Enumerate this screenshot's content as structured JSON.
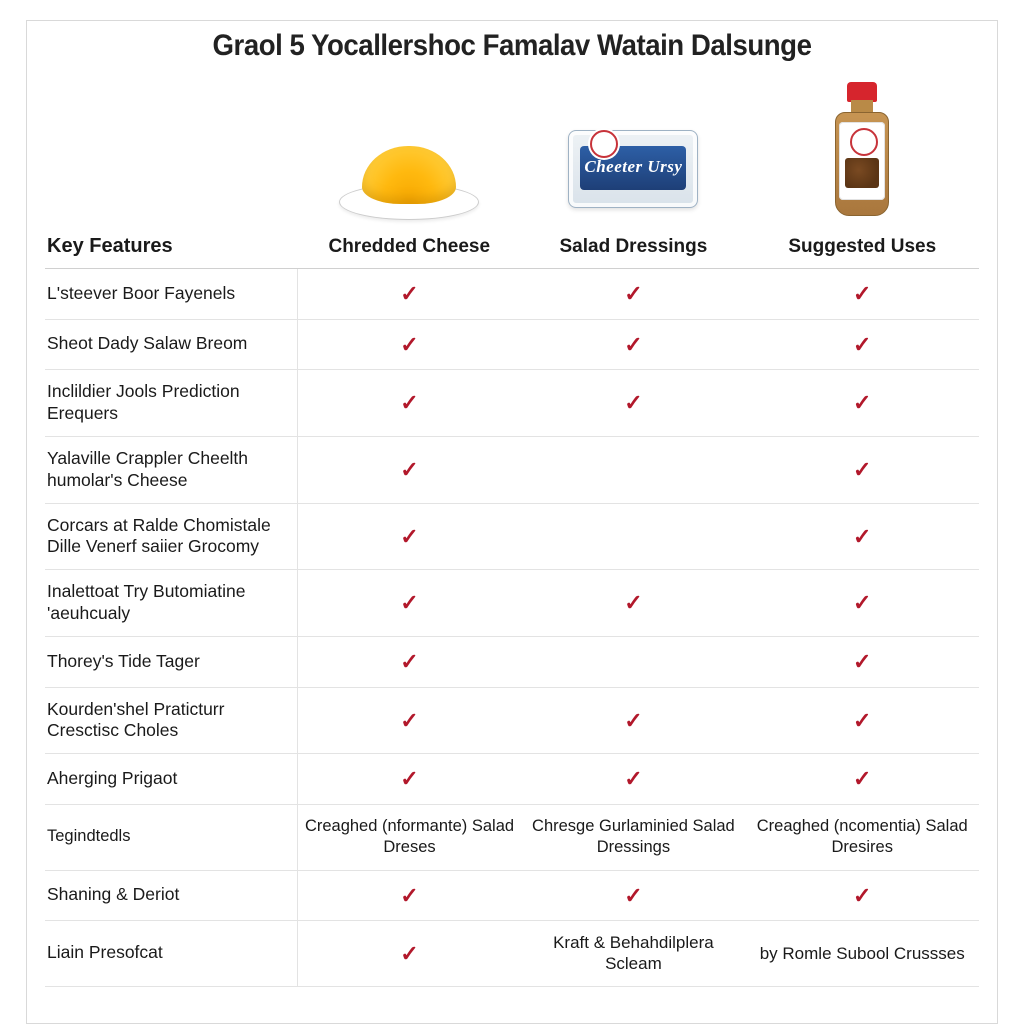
{
  "title": "Graol 5 Yocallershoc Famalav Watain Dalsunge",
  "columns": {
    "key": "Key Features",
    "c1": "Chredded Cheese",
    "c2": "Salad Dressings",
    "c3": "Suggested Uses"
  },
  "pkg_label": "Cheeter Ursy",
  "check_glyph": "✓",
  "colors": {
    "check": "#b2182b",
    "border": "#e3e3e3",
    "title": "#222222",
    "brand_red": "#d6252d",
    "brand_blue": "#1e3f77"
  },
  "rows": [
    {
      "label": "L'steever Boor Fayenels",
      "c1": "check",
      "c2": "check",
      "c3": "check"
    },
    {
      "label": "Sheot Dady Salaw Breom",
      "c1": "check",
      "c2": "check",
      "c3": "check"
    },
    {
      "label": "Inclildier Jools Prediction Erequers",
      "c1": "check",
      "c2": "check",
      "c3": "check"
    },
    {
      "label": "Yalaville Crappler Cheelth humolar's Cheese",
      "c1": "check",
      "c2": "",
      "c3": "check"
    },
    {
      "label": "Corcars at Ralde Chomistale Dille Venerf saiier Grocomy",
      "c1": "check",
      "c2": "",
      "c3": "check"
    },
    {
      "label": "Inalettoat Try Butomiatine 'aeuhcualy",
      "c1": "check",
      "c2": "check",
      "c3": "check"
    },
    {
      "label": "Thorey's Tide Tager",
      "c1": "check",
      "c2": "",
      "c3": "check"
    },
    {
      "label": "Kourden'shel Praticturr Cresctisc Choles",
      "c1": "check",
      "c2": "check",
      "c3": "check"
    },
    {
      "label": "Aherging Prigaot",
      "c1": "check",
      "c2": "check",
      "c3": "check"
    },
    {
      "label": "Tegindtedls",
      "c1": "Creaghed (nformante) Salad Dreses",
      "c2": "Chresge Gurlaminied Salad Dressings",
      "c3": "Creaghed (ncomentia) Salad Dresires",
      "text": true
    },
    {
      "label": "Shaning & Deriot",
      "c1": "check",
      "c2": "check",
      "c3": "check"
    },
    {
      "label": "Liain Presofcat",
      "c1": "check",
      "c2": "Kraft & Behahdilplera Scleam",
      "c3": "by Romle Subool Crussses",
      "mixed": true
    }
  ]
}
